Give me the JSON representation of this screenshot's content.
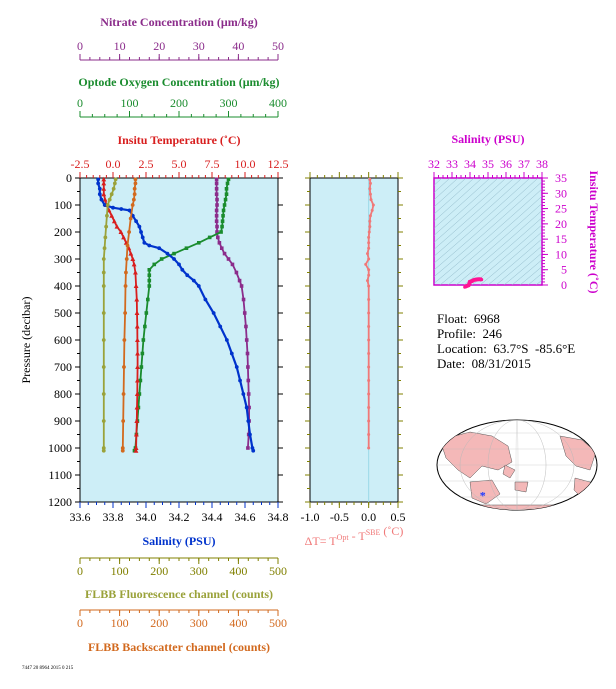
{
  "colors": {
    "nitrate": "#8b2c8b",
    "oxygen": "#1a8c2e",
    "temperature": "#d81e1e",
    "salinity": "#0033cc",
    "fluorescence": "#9aa23a",
    "backscatter": "#d2691e",
    "delta_t": "#f07878",
    "panel_bg": "#cdeef7",
    "ts_axis": "#cc00cc",
    "axis_olive": "#808000"
  },
  "info": {
    "float_label": "Float:",
    "float_value": "6968",
    "profile_label": "Profile:",
    "profile_value": "246",
    "location_label": "Location:",
    "location_value": "63.7°S  -85.6°E",
    "date_label": "Date:",
    "date_value": "08/31/2015"
  },
  "footer_code": "7447 20 8964 2015 0 215",
  "chart_data": [
    {
      "type": "line",
      "panel": "profiles",
      "ylabel": "Pressure (decibar)",
      "ylim": [
        1200,
        0
      ],
      "yticks": [
        0,
        100,
        200,
        300,
        400,
        500,
        600,
        700,
        800,
        900,
        1000,
        1100,
        1200
      ],
      "axes": {
        "nitrate": {
          "label": "Nitrate Concentration (μm/kg)",
          "lim": [
            0,
            50
          ],
          "ticks": [
            0,
            10,
            20,
            30,
            40,
            50
          ]
        },
        "oxygen": {
          "label": "Optode Oxygen Concentration (μm/kg)",
          "lim": [
            0,
            400
          ],
          "ticks": [
            0,
            100,
            200,
            300,
            400
          ]
        },
        "temperature": {
          "label": "Insitu Temperature (˚C)",
          "lim": [
            -2.5,
            12.5
          ],
          "ticks": [
            "-2.5",
            "0.0",
            "2.5",
            "5.0",
            "7.5",
            "10.0",
            "12.5"
          ]
        },
        "salinity": {
          "label": "Salinity (PSU)",
          "lim": [
            33.6,
            34.8
          ],
          "ticks": [
            "33.6",
            "33.8",
            "34.0",
            "34.2",
            "34.4",
            "34.6",
            "34.8"
          ]
        },
        "fluorescence": {
          "label": "FLBB Fluorescence channel (counts)",
          "lim": [
            0,
            500
          ],
          "ticks": [
            0,
            100,
            200,
            300,
            400,
            500
          ]
        },
        "backscatter": {
          "label": "FLBB Backscatter channel (counts)",
          "lim": [
            0,
            500
          ],
          "ticks": [
            0,
            100,
            200,
            300,
            400,
            500
          ]
        }
      },
      "series": [
        {
          "axis": "nitrate",
          "marker": "square",
          "points": [
            [
              34.5,
              5
            ],
            [
              34.5,
              20
            ],
            [
              34.5,
              40
            ],
            [
              34.5,
              60
            ],
            [
              34.6,
              80
            ],
            [
              34.6,
              100
            ],
            [
              34.5,
              120
            ],
            [
              34.5,
              140
            ],
            [
              34.5,
              160
            ],
            [
              34.6,
              180
            ],
            [
              34.6,
              200
            ],
            [
              34.8,
              220
            ],
            [
              35.2,
              240
            ],
            [
              35.8,
              260
            ],
            [
              36.5,
              280
            ],
            [
              37.5,
              300
            ],
            [
              38.5,
              320
            ],
            [
              39.5,
              350
            ],
            [
              40.3,
              380
            ],
            [
              40.8,
              400
            ],
            [
              41.3,
              450
            ],
            [
              41.6,
              500
            ],
            [
              41.9,
              550
            ],
            [
              42.1,
              600
            ],
            [
              42.3,
              650
            ],
            [
              42.4,
              700
            ],
            [
              42.5,
              750
            ],
            [
              42.6,
              800
            ],
            [
              42.7,
              850
            ],
            [
              42.7,
              900
            ],
            [
              42.6,
              950
            ],
            [
              42.4,
              1000
            ]
          ]
        },
        {
          "axis": "oxygen",
          "marker": "square",
          "points": [
            [
              300,
              5
            ],
            [
              298,
              20
            ],
            [
              296,
              40
            ],
            [
              296,
              60
            ],
            [
              294,
              80
            ],
            [
              292,
              100
            ],
            [
              290,
              120
            ],
            [
              289,
              140
            ],
            [
              288,
              160
            ],
            [
              287,
              180
            ],
            [
              285,
              200
            ],
            [
              262,
              220
            ],
            [
              240,
              240
            ],
            [
              215,
              260
            ],
            [
              190,
              280
            ],
            [
              165,
              300
            ],
            [
              150,
              320
            ],
            [
              140,
              340
            ],
            [
              140,
              360
            ],
            [
              140,
              380
            ],
            [
              140,
              400
            ],
            [
              137,
              450
            ],
            [
              134,
              500
            ],
            [
              131,
              550
            ],
            [
              128,
              600
            ],
            [
              126,
              650
            ],
            [
              124,
              700
            ],
            [
              122,
              750
            ],
            [
              120,
              800
            ],
            [
              118,
              850
            ],
            [
              116,
              900
            ],
            [
              114,
              950
            ],
            [
              112,
              1000
            ],
            [
              110,
              1010
            ]
          ]
        },
        {
          "axis": "temperature",
          "marker": "triangle",
          "points": [
            [
              -0.7,
              5
            ],
            [
              -0.7,
              20
            ],
            [
              -0.7,
              40
            ],
            [
              -0.7,
              60
            ],
            [
              -0.6,
              80
            ],
            [
              -0.5,
              100
            ],
            [
              -0.3,
              120
            ],
            [
              -0.1,
              140
            ],
            [
              0.1,
              160
            ],
            [
              0.3,
              180
            ],
            [
              0.6,
              200
            ],
            [
              0.8,
              220
            ],
            [
              1.0,
              240
            ],
            [
              1.2,
              260
            ],
            [
              1.35,
              280
            ],
            [
              1.5,
              300
            ],
            [
              1.6,
              320
            ],
            [
              1.7,
              350
            ],
            [
              1.75,
              400
            ],
            [
              1.8,
              450
            ],
            [
              1.82,
              500
            ],
            [
              1.84,
              550
            ],
            [
              1.85,
              600
            ],
            [
              1.86,
              650
            ],
            [
              1.86,
              700
            ],
            [
              1.85,
              750
            ],
            [
              1.84,
              800
            ],
            [
              1.82,
              850
            ],
            [
              1.8,
              900
            ],
            [
              1.77,
              950
            ],
            [
              1.75,
              1000
            ],
            [
              1.74,
              1010
            ]
          ]
        },
        {
          "axis": "salinity",
          "marker": "dot",
          "points": [
            [
              33.71,
              5
            ],
            [
              33.71,
              20
            ],
            [
              33.72,
              40
            ],
            [
              33.72,
              60
            ],
            [
              33.73,
              80
            ],
            [
              33.75,
              100
            ],
            [
              33.8,
              110
            ],
            [
              33.85,
              115
            ],
            [
              33.9,
              120
            ],
            [
              33.92,
              140
            ],
            [
              33.94,
              160
            ],
            [
              33.96,
              180
            ],
            [
              33.97,
              200
            ],
            [
              33.98,
              220
            ],
            [
              33.99,
              240
            ],
            [
              34.02,
              250
            ],
            [
              34.08,
              260
            ],
            [
              34.13,
              280
            ],
            [
              34.17,
              300
            ],
            [
              34.2,
              320
            ],
            [
              34.22,
              340
            ],
            [
              34.25,
              360
            ],
            [
              34.29,
              380
            ],
            [
              34.32,
              400
            ],
            [
              34.36,
              450
            ],
            [
              34.41,
              500
            ],
            [
              34.45,
              550
            ],
            [
              34.49,
              600
            ],
            [
              34.52,
              650
            ],
            [
              34.55,
              700
            ],
            [
              34.57,
              750
            ],
            [
              34.59,
              800
            ],
            [
              34.61,
              850
            ],
            [
              34.62,
              900
            ],
            [
              34.63,
              950
            ],
            [
              34.645,
              1000
            ],
            [
              34.65,
              1010
            ]
          ]
        },
        {
          "axis": "fluorescence",
          "marker": "dot",
          "points": [
            [
              90,
              5
            ],
            [
              88,
              20
            ],
            [
              85,
              40
            ],
            [
              80,
              60
            ],
            [
              75,
              80
            ],
            [
              70,
              100
            ],
            [
              68,
              140
            ],
            [
              66,
              180
            ],
            [
              64,
              220
            ],
            [
              62,
              260
            ],
            [
              60,
              300
            ],
            [
              60,
              350
            ],
            [
              60,
              400
            ],
            [
              60,
              500
            ],
            [
              60,
              600
            ],
            [
              60,
              700
            ],
            [
              60,
              800
            ],
            [
              60,
              900
            ],
            [
              60,
              1000
            ],
            [
              60,
              1010
            ]
          ]
        },
        {
          "axis": "backscatter",
          "marker": "dot",
          "points": [
            [
              140,
              5
            ],
            [
              140,
              20
            ],
            [
              138,
              40
            ],
            [
              138,
              60
            ],
            [
              136,
              80
            ],
            [
              133,
              100
            ],
            [
              128,
              150
            ],
            [
              124,
              200
            ],
            [
              120,
              250
            ],
            [
              118,
              300
            ],
            [
              116,
              350
            ],
            [
              115,
              400
            ],
            [
              114,
              500
            ],
            [
              112,
              600
            ],
            [
              111,
              700
            ],
            [
              110,
              800
            ],
            [
              109,
              900
            ],
            [
              108,
              1000
            ],
            [
              108,
              1010
            ]
          ]
        }
      ]
    },
    {
      "type": "line",
      "panel": "delta_t",
      "xlabel_main": "ΔT= T",
      "xlabel_sup1": "Opt",
      "xlabel_mid": " - T",
      "xlabel_sup2": "SBE",
      "xlabel_tail": " (˚C)",
      "xlim": [
        -1.0,
        0.5
      ],
      "xticks": [
        "-1.0",
        "-0.5",
        "0.0",
        "0.5"
      ],
      "ylim": [
        1200,
        0
      ],
      "points": [
        [
          0.02,
          5
        ],
        [
          0.03,
          20
        ],
        [
          0.02,
          40
        ],
        [
          0.03,
          60
        ],
        [
          0.04,
          80
        ],
        [
          0.08,
          100
        ],
        [
          0.06,
          120
        ],
        [
          0.03,
          140
        ],
        [
          0.02,
          160
        ],
        [
          0.02,
          180
        ],
        [
          0.01,
          200
        ],
        [
          0.0,
          220
        ],
        [
          0.0,
          240
        ],
        [
          0.0,
          260
        ],
        [
          -0.02,
          280
        ],
        [
          0.0,
          300
        ],
        [
          -0.05,
          320
        ],
        [
          0.0,
          340
        ],
        [
          0.0,
          360
        ],
        [
          -0.02,
          380
        ],
        [
          0.0,
          400
        ],
        [
          0.0,
          450
        ],
        [
          0.0,
          500
        ],
        [
          0.0,
          550
        ],
        [
          0.0,
          600
        ],
        [
          0.0,
          650
        ],
        [
          0.0,
          700
        ],
        [
          0.0,
          750
        ],
        [
          0.0,
          800
        ],
        [
          0.0,
          850
        ],
        [
          0.0,
          900
        ],
        [
          0.0,
          950
        ],
        [
          0.0,
          1000
        ]
      ]
    },
    {
      "type": "scatter",
      "panel": "ts_diagram",
      "title": "Salinity (PSU)",
      "ylabel": "Insitu Temperature (˚C)",
      "xlim": [
        32,
        38
      ],
      "xticks": [
        32,
        33,
        34,
        35,
        36,
        37,
        38
      ],
      "ylim": [
        0,
        35
      ],
      "yticks": [
        0,
        5,
        10,
        15,
        20,
        25,
        30,
        35
      ],
      "points": [
        [
          33.71,
          -0.7
        ],
        [
          33.75,
          -0.5
        ],
        [
          33.92,
          -0.1
        ],
        [
          33.97,
          0.6
        ],
        [
          33.99,
          1.0
        ],
        [
          34.13,
          1.35
        ],
        [
          34.2,
          1.6
        ],
        [
          34.32,
          1.75
        ],
        [
          34.41,
          1.82
        ],
        [
          34.49,
          1.85
        ],
        [
          34.55,
          1.86
        ],
        [
          34.59,
          1.84
        ],
        [
          34.62,
          1.8
        ],
        [
          34.645,
          1.75
        ]
      ]
    },
    {
      "type": "map",
      "panel": "globe",
      "marker": {
        "lat": -63.7,
        "lon": -85.6
      }
    }
  ]
}
